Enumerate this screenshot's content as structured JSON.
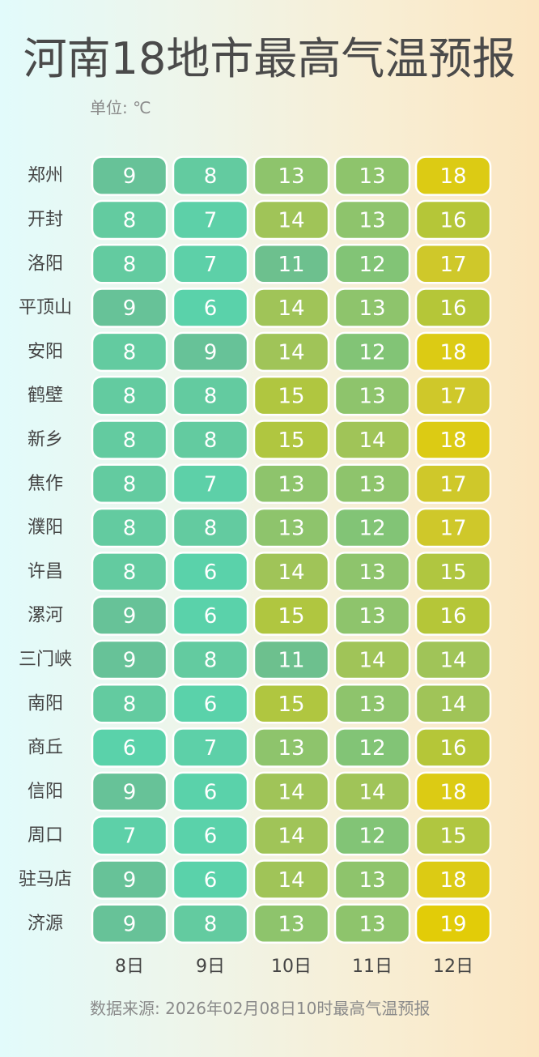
{
  "title": "河南18地市最高气温预报",
  "unit_label": "单位: ℃",
  "source": "数据来源: 2026年02月08日10时最高气温预报",
  "chart_data": {
    "type": "heatmap",
    "title": "河南18地市最高气温预报",
    "x": [
      "8日",
      "9日",
      "10日",
      "11日",
      "12日"
    ],
    "y": [
      "郑州",
      "开封",
      "洛阳",
      "平顶山",
      "安阳",
      "鹤壁",
      "新乡",
      "焦作",
      "濮阳",
      "许昌",
      "漯河",
      "三门峡",
      "南阳",
      "商丘",
      "信阳",
      "周口",
      "驻马店",
      "济源"
    ],
    "values": [
      [
        9,
        8,
        13,
        13,
        18
      ],
      [
        8,
        7,
        14,
        13,
        16
      ],
      [
        8,
        7,
        11,
        12,
        17
      ],
      [
        9,
        6,
        14,
        13,
        16
      ],
      [
        8,
        9,
        14,
        12,
        18
      ],
      [
        8,
        8,
        15,
        13,
        17
      ],
      [
        8,
        8,
        15,
        14,
        18
      ],
      [
        8,
        7,
        13,
        13,
        17
      ],
      [
        8,
        8,
        13,
        12,
        17
      ],
      [
        8,
        6,
        14,
        13,
        15
      ],
      [
        9,
        6,
        15,
        13,
        16
      ],
      [
        9,
        8,
        11,
        14,
        14
      ],
      [
        8,
        6,
        15,
        13,
        14
      ],
      [
        6,
        7,
        13,
        12,
        16
      ],
      [
        9,
        6,
        14,
        14,
        18
      ],
      [
        7,
        6,
        14,
        12,
        15
      ],
      [
        9,
        6,
        14,
        13,
        18
      ],
      [
        9,
        8,
        13,
        13,
        19
      ]
    ],
    "color_stops": [
      {
        "value": 6,
        "color": "#5ad2aa"
      },
      {
        "value": 7,
        "color": "#5dd0a8"
      },
      {
        "value": 8,
        "color": "#63cba0"
      },
      {
        "value": 9,
        "color": "#67c298"
      },
      {
        "value": 11,
        "color": "#6dc08e"
      },
      {
        "value": 12,
        "color": "#82c476"
      },
      {
        "value": 13,
        "color": "#8ec46c"
      },
      {
        "value": 14,
        "color": "#a0c458"
      },
      {
        "value": 15,
        "color": "#b0c640"
      },
      {
        "value": 16,
        "color": "#b5c638"
      },
      {
        "value": 17,
        "color": "#cfc82a"
      },
      {
        "value": 18,
        "color": "#dccb14"
      },
      {
        "value": 19,
        "color": "#e2cc08"
      }
    ]
  }
}
